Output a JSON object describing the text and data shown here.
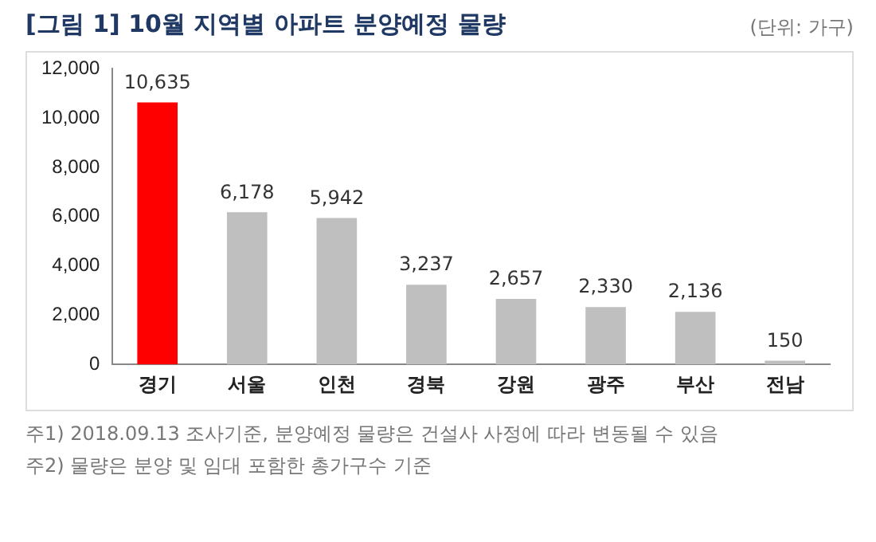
{
  "chart_data": {
    "type": "bar",
    "title": "[그림 1] 10월 지역별 아파트 분양예정 물량",
    "categories": [
      "경기",
      "서울",
      "인천",
      "경북",
      "강원",
      "광주",
      "부산",
      "전남"
    ],
    "values": [
      10635,
      6178,
      5942,
      3237,
      2657,
      2330,
      2136,
      150
    ],
    "colors": [
      "#ff0000",
      "#bfbfbf",
      "#bfbfbf",
      "#bfbfbf",
      "#bfbfbf",
      "#bfbfbf",
      "#bfbfbf",
      "#bfbfbf"
    ],
    "value_labels": [
      "10,635",
      "6,178",
      "5,942",
      "3,237",
      "2,657",
      "2,330",
      "2,136",
      "150"
    ],
    "ylim": [
      0,
      12000
    ],
    "yticks": [
      0,
      {
        "value": 2000,
        "label": "2,000"
      },
      {
        "value": 4000,
        "label": "4,000"
      },
      {
        "value": 6000,
        "label": "6,000"
      },
      {
        "value": 8000,
        "label": "8,000"
      },
      {
        "value": 10000,
        "label": "10,000"
      },
      {
        "value": 12000,
        "label": "12,000"
      }
    ],
    "grid": false,
    "legend": false,
    "annotations": [
      "(단위: 가구)",
      "주1) 2018.09.13 조사기준, 분양예정 물량은 건설사 사정에 따라 변동될 수 있음",
      "주2) 물량은 분양 및 임대 포함한 총가구수 기준"
    ]
  }
}
